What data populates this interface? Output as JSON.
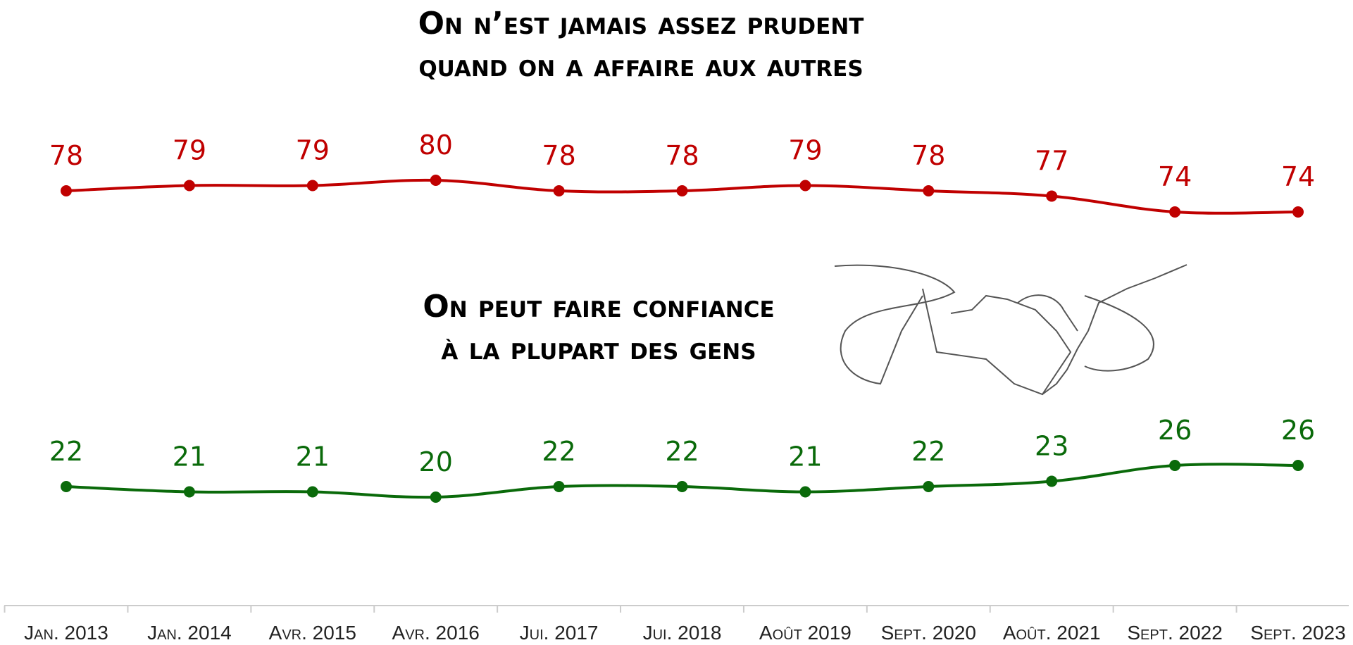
{
  "chart_data": {
    "type": "line",
    "categories": [
      "Jan. 2013",
      "Jan. 2014",
      "Avr. 2015",
      "Avr. 2016",
      "Jui. 2017",
      "Jui. 2018",
      "Août 2019",
      "Sept. 2020",
      "Août. 2021",
      "Sept. 2022",
      "Sept. 2023"
    ],
    "series": [
      {
        "name": "On n’est jamais assez prudent quand on a affaire aux autres",
        "color": "#c00000",
        "values": [
          78,
          79,
          79,
          80,
          78,
          78,
          79,
          78,
          77,
          74,
          74
        ]
      },
      {
        "name": "On peut faire confiance à la plupart des gens",
        "color": "#0a6a0a",
        "values": [
          22,
          21,
          21,
          20,
          22,
          22,
          21,
          22,
          23,
          26,
          26
        ]
      }
    ]
  }
}
